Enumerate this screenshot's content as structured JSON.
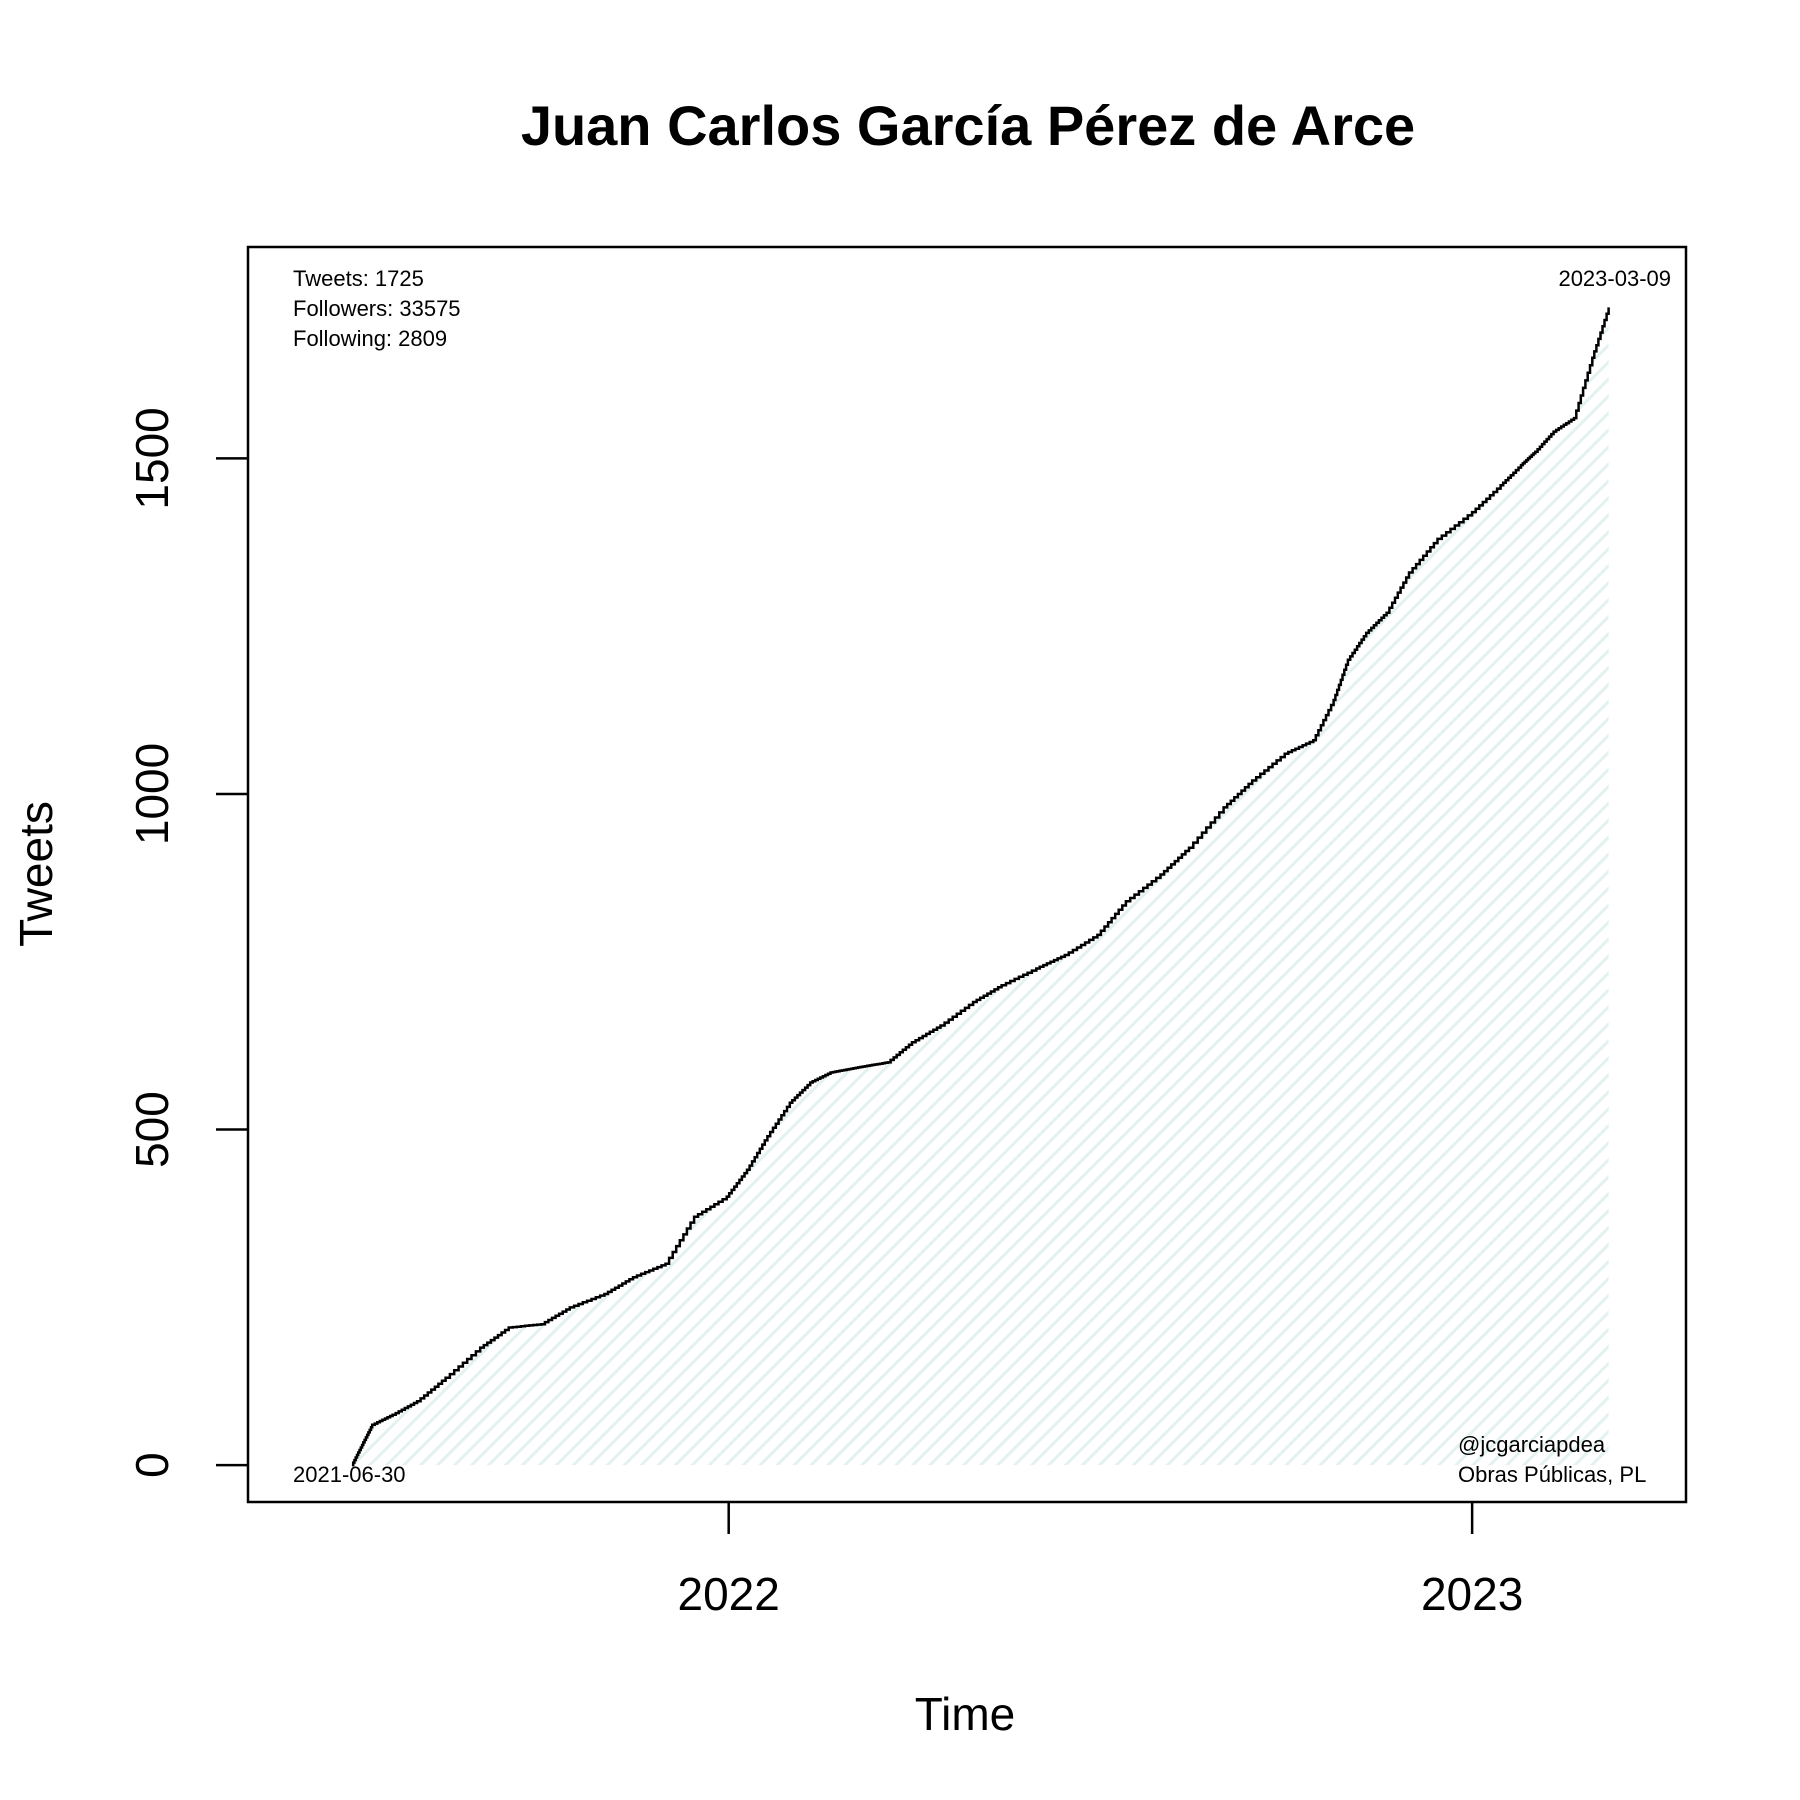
{
  "chart_data": {
    "type": "area",
    "title": "Juan Carlos García Pérez de Arce",
    "xlabel": "Time",
    "ylabel": "Tweets",
    "x_ticks": [
      "2022",
      "2023"
    ],
    "y_ticks": [
      0,
      500,
      1000,
      1500
    ],
    "ylim": [
      -55,
      1815
    ],
    "xlim": [
      "2021-05-10",
      "2023-04-16"
    ],
    "grid": false,
    "fill_color": "#eaf5f5",
    "line_color": "#000000",
    "series": [
      {
        "x": [
          "2021-06-30",
          "2021-07-05",
          "2021-07-10",
          "2021-07-20",
          "2021-08-01",
          "2021-08-15",
          "2021-09-01",
          "2021-09-15",
          "2021-10-01",
          "2021-10-15",
          "2021-11-01",
          "2021-11-15",
          "2021-12-01",
          "2021-12-15",
          "2021-12-31",
          "2022-01-10",
          "2022-01-20",
          "2022-01-31",
          "2022-02-10",
          "2022-02-20",
          "2022-03-01",
          "2022-03-10",
          "2022-03-20",
          "2022-04-01",
          "2022-04-15",
          "2022-05-01",
          "2022-05-15",
          "2022-06-01",
          "2022-06-15",
          "2022-07-01",
          "2022-07-15",
          "2022-08-01",
          "2022-08-15",
          "2022-09-01",
          "2022-09-15",
          "2022-10-01",
          "2022-10-15",
          "2022-10-25",
          "2022-11-01",
          "2022-11-10",
          "2022-11-20",
          "2022-12-01",
          "2022-12-15",
          "2023-01-01",
          "2023-01-15",
          "2023-01-25",
          "2023-02-01",
          "2023-02-10",
          "2023-02-20",
          "2023-03-01",
          "2023-03-09"
        ],
        "y": [
          0,
          30,
          60,
          75,
          95,
          130,
          175,
          205,
          210,
          235,
          255,
          280,
          300,
          370,
          400,
          440,
          490,
          540,
          570,
          585,
          590,
          595,
          600,
          630,
          655,
          690,
          715,
          740,
          760,
          790,
          840,
          880,
          920,
          980,
          1020,
          1060,
          1080,
          1140,
          1200,
          1240,
          1270,
          1330,
          1380,
          1420,
          1460,
          1490,
          1510,
          1540,
          1560,
          1650,
          1725
        ]
      }
    ],
    "annotations": {
      "stats": [
        "Tweets: 1725",
        "Followers: 33575",
        "Following: 2809"
      ],
      "start_date": "2021-06-30",
      "end_date": "2023-03-09",
      "handle": "@jcgarciapdea",
      "affiliation": "Obras Públicas, PL"
    }
  }
}
